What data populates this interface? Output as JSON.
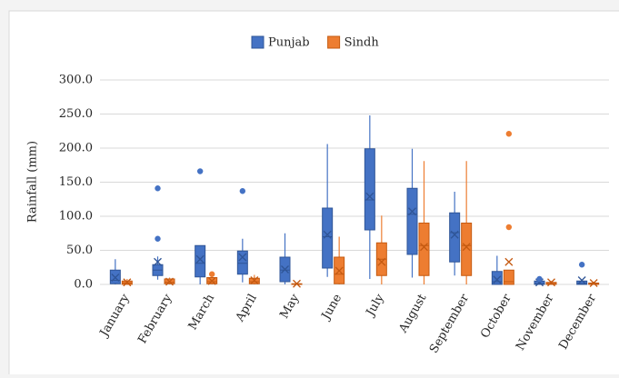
{
  "chart_data": {
    "type": "box",
    "y_label": "Rainfall (mm)",
    "categories": [
      "January",
      "February",
      "March",
      "April",
      "May",
      "June",
      "July",
      "August",
      "September",
      "October",
      "November",
      "December"
    ],
    "ylim": [
      0,
      300
    ],
    "yticks": [
      {
        "value": 0,
        "label": "0.0"
      },
      {
        "value": 50,
        "label": "50.0"
      },
      {
        "value": 100,
        "label": "100.0"
      },
      {
        "value": 150,
        "label": "150.0"
      },
      {
        "value": 200,
        "label": "200.0"
      },
      {
        "value": 250,
        "label": "250.0"
      },
      {
        "value": 300,
        "label": "300.0"
      }
    ],
    "grid": true,
    "legend": "top",
    "series": [
      {
        "name": "Punjab",
        "color": "#4472c4",
        "edge": "#2f5597",
        "min": [
          0,
          7,
          0,
          3,
          0,
          11,
          8,
          10,
          13,
          0,
          0,
          0
        ],
        "q1": [
          1,
          13,
          11,
          15,
          4,
          24,
          80,
          44,
          33,
          0,
          0,
          0
        ],
        "median": [
          6,
          21,
          31,
          31,
          21,
          70,
          124,
          103,
          76,
          4,
          1,
          1
        ],
        "q3": [
          21,
          29,
          57,
          49,
          40,
          112,
          199,
          141,
          105,
          19,
          5,
          5
        ],
        "max": [
          37,
          41,
          57,
          67,
          75,
          206,
          248,
          199,
          136,
          42,
          5,
          5
        ],
        "mean": [
          10,
          33,
          37,
          40,
          22,
          73,
          129,
          107,
          73,
          7,
          3,
          6
        ],
        "outliers": [
          [],
          [
            141,
            67
          ],
          [
            166
          ],
          [
            137
          ],
          [],
          [],
          [],
          [],
          [],
          [],
          [
            8
          ],
          [
            29
          ]
        ]
      },
      {
        "name": "Sindh",
        "color": "#ed7d31",
        "edge": "#c55a11",
        "min": [
          0,
          0,
          0,
          0,
          0,
          0,
          0,
          0,
          0,
          0,
          0,
          0
        ],
        "q1": [
          0,
          1,
          1,
          1,
          0,
          1,
          13,
          13,
          13,
          0,
          0,
          0
        ],
        "median": [
          2,
          3,
          4,
          4,
          0,
          15,
          37,
          57,
          57,
          4,
          1,
          1
        ],
        "q3": [
          5,
          8,
          10,
          9,
          1,
          40,
          61,
          90,
          90,
          21,
          3,
          2
        ],
        "max": [
          8,
          10,
          13,
          14,
          2,
          70,
          101,
          181,
          181,
          21,
          5,
          4
        ],
        "mean": [
          3,
          4,
          5,
          6,
          1,
          20,
          33,
          55,
          55,
          33,
          3,
          2
        ],
        "outliers": [
          [],
          [],
          [
            15
          ],
          [],
          [],
          [],
          [],
          [],
          [],
          [
            221,
            84
          ],
          [],
          []
        ]
      }
    ]
  }
}
